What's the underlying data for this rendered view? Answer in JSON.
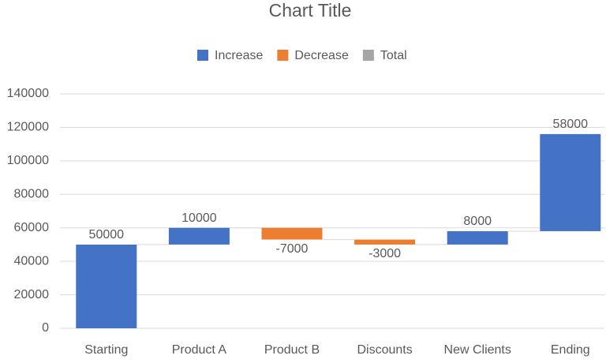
{
  "chart_data": {
    "type": "waterfall",
    "title": "Chart Title",
    "categories": [
      "Starting",
      "Product A",
      "Product B",
      "Discounts",
      "New Clients",
      "Ending"
    ],
    "values": [
      50000,
      10000,
      -7000,
      -3000,
      8000,
      58000
    ],
    "legend": [
      {
        "name": "Increase",
        "color": "#4472c4"
      },
      {
        "name": "Decrease",
        "color": "#ed7d31"
      },
      {
        "name": "Total",
        "color": "#a5a5a5"
      }
    ],
    "ylim": [
      0,
      140000
    ],
    "yticks": [
      0,
      20000,
      40000,
      60000,
      80000,
      100000,
      120000,
      140000
    ],
    "grid": true
  }
}
